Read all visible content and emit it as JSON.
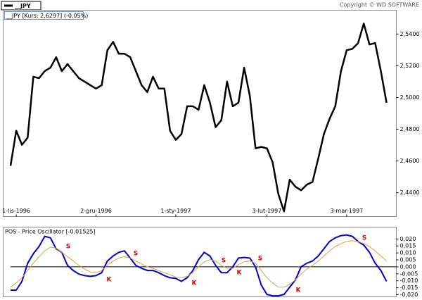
{
  "copyright": "Copyright © WD SOFTWARE",
  "chart_data": [
    {
      "type": "line",
      "title": "__JPY [Kurs: 2,6297] (-0,05%)",
      "categories": [
        null,
        "1-lis-1996",
        null,
        null,
        null,
        null,
        null,
        null,
        null,
        null,
        null,
        null,
        null,
        null,
        null,
        "2-gru-1996",
        null,
        null,
        null,
        null,
        null,
        null,
        null,
        null,
        null,
        null,
        null,
        null,
        null,
        "1-sty-1997",
        null,
        null,
        null,
        null,
        null,
        null,
        null,
        null,
        null,
        null,
        null,
        null,
        null,
        null,
        null,
        "3-lut-1997",
        null,
        null,
        null,
        null,
        null,
        null,
        null,
        null,
        null,
        null,
        null,
        null,
        null,
        "3-mar-1997",
        null,
        null,
        null,
        null,
        null,
        null,
        null
      ],
      "series": [
        {
          "name": "__JPY",
          "color": "#000000",
          "values": [
            2.457,
            2.4791,
            2.4702,
            2.4747,
            2.5131,
            2.5122,
            2.5166,
            2.5188,
            2.5254,
            2.5166,
            2.521,
            2.5166,
            2.5122,
            2.51,
            2.5078,
            2.5056,
            2.5078,
            2.5298,
            2.5351,
            2.5276,
            2.5276,
            2.5254,
            2.5166,
            2.5078,
            2.5034,
            2.5131,
            2.5056,
            2.5056,
            2.4791,
            2.4733,
            2.4769,
            2.4945,
            2.4945,
            2.4923,
            2.5078,
            2.4967,
            2.4813,
            2.4857,
            2.51,
            2.4945,
            2.4967,
            2.5188,
            2.5011,
            2.468,
            2.4689,
            2.468,
            2.4592,
            2.4393,
            2.4283,
            2.4482,
            2.4438,
            2.4415,
            2.4451,
            2.4468,
            2.4614,
            2.4769,
            2.4866,
            2.4945,
            2.5166,
            2.5298,
            2.5307,
            2.5343,
            2.5466,
            2.5334,
            2.5343,
            2.5166,
            2.4967
          ]
        }
      ],
      "ylim": [
        2.425,
        2.555
      ],
      "yticks": [
        {
          "value": 2.44,
          "label": "2,4400"
        },
        {
          "value": 2.46,
          "label": "2,4600"
        },
        {
          "value": 2.48,
          "label": "2,4800"
        },
        {
          "value": 2.5,
          "label": "2,5000"
        },
        {
          "value": 2.52,
          "label": "2,5200"
        },
        {
          "value": 2.54,
          "label": "2,5400"
        }
      ]
    },
    {
      "type": "line",
      "title": "POS - Price Oscillator [-0,01525]",
      "series": [
        {
          "color": "#0000d0",
          "values": [
            -0.0167,
            -0.0167,
            -0.0104,
            0.0026,
            0.0094,
            0.0146,
            0.0219,
            0.0208,
            0.013,
            0.0104,
            0.001,
            -0.0026,
            -0.0052,
            -0.0063,
            -0.0068,
            -0.0063,
            -0.0042,
            0.0042,
            0.0078,
            0.0104,
            0.0115,
            0.0063,
            0.001,
            -0.001,
            -0.0026,
            -0.0026,
            -0.0042,
            -0.0063,
            -0.0078,
            -0.0083,
            -0.0104,
            -0.0078,
            -0.0026,
            0.0052,
            0.0104,
            0.0078,
            0.001,
            -0.0042,
            -0.0042,
            0.0,
            0.0063,
            0.0068,
            0.0063,
            0.0,
            -0.013,
            -0.0198,
            -0.0208,
            -0.0208,
            -0.0198,
            -0.0146,
            -0.0094,
            0.0,
            0.0026,
            0.0042,
            0.0078,
            0.013,
            0.0182,
            0.0208,
            0.0224,
            0.0229,
            0.0219,
            0.0182,
            0.0156,
            0.0104,
            0.0026,
            -0.0026,
            -0.0104
          ]
        },
        {
          "color": "#e0a040",
          "values": [
            -0.0146,
            -0.0115,
            -0.0078,
            -0.0026,
            0.0026,
            0.0073,
            0.0115,
            0.0141,
            0.0135,
            0.0104,
            0.0073,
            0.0042,
            0.001,
            -0.0016,
            -0.0036,
            -0.0042,
            -0.0026,
            0.001,
            0.0042,
            0.0063,
            0.0073,
            0.0063,
            0.0042,
            0.0021,
            0.0,
            -0.001,
            -0.0026,
            -0.0042,
            -0.0057,
            -0.0073,
            -0.0078,
            -0.0068,
            -0.0042,
            0.0,
            0.0036,
            0.0052,
            0.0042,
            0.001,
            -0.001,
            -0.001,
            0.0016,
            0.0036,
            0.0042,
            0.0026,
            -0.0026,
            -0.0078,
            -0.0115,
            -0.0146,
            -0.0146,
            -0.0125,
            -0.0094,
            -0.0052,
            -0.0016,
            0.001,
            0.0042,
            0.0078,
            0.0115,
            0.0146,
            0.0167,
            0.0182,
            0.0188,
            0.0182,
            0.0167,
            0.0146,
            0.0115,
            0.0078,
            0.0042
          ]
        }
      ],
      "ylim": [
        -0.0215,
        0.0285
      ],
      "yticks": [
        {
          "value": -0.02,
          "label": "-0,020"
        },
        {
          "value": -0.015,
          "label": "-0,015"
        },
        {
          "value": -0.01,
          "label": "-0,010"
        },
        {
          "value": -0.005,
          "label": "-0,005"
        },
        {
          "value": 0,
          "label": "0,000"
        },
        {
          "value": 0.005,
          "label": "0,005"
        },
        {
          "value": 0.01,
          "label": "0,010"
        },
        {
          "value": 0.015,
          "label": "0,015"
        },
        {
          "value": 0.02,
          "label": "0,020"
        }
      ],
      "zero_line": true,
      "annotations": [
        "S",
        "K",
        "S",
        "K",
        "S",
        "K",
        "S",
        "K",
        "S"
      ]
    }
  ]
}
